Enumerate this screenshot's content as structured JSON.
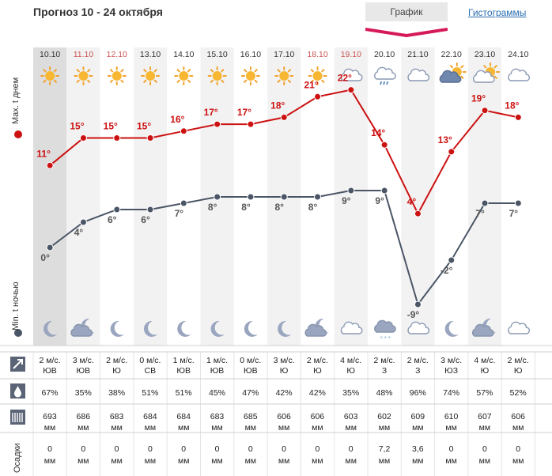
{
  "header": {
    "title": "Прогноз 10 - 24 октября",
    "tab_graph": "График",
    "tab_hist": "Гистограммы"
  },
  "labels": {
    "max_day": "Max. t днем",
    "min_night": "Min. t ночью",
    "precip": "Осадки"
  },
  "colors": {
    "max_line": "#cc1111",
    "min_line": "#4a5566",
    "accent": "#d6195a",
    "weekend_date": "#cc5555"
  },
  "chart_data": {
    "type": "line",
    "categories": [
      "10.10",
      "11.10",
      "12.10",
      "13.10",
      "14.10",
      "15.10",
      "16.10",
      "17.10",
      "18.10",
      "19.10",
      "20.10",
      "21.10",
      "22.10",
      "23.10",
      "24.10"
    ],
    "weekend": [
      false,
      true,
      true,
      false,
      false,
      false,
      false,
      false,
      true,
      true,
      false,
      false,
      false,
      false,
      false
    ],
    "series": [
      {
        "key": "max",
        "values": [
          11,
          15,
          15,
          15,
          16,
          17,
          17,
          18,
          21,
          22,
          14,
          4,
          13,
          19,
          18
        ]
      },
      {
        "key": "min",
        "values": [
          0,
          4,
          6,
          6,
          7,
          8,
          8,
          8,
          8,
          9,
          9,
          -9,
          -2,
          7,
          7
        ]
      }
    ],
    "day_icons": [
      "sun-icon",
      "sun-icon",
      "sun-icon",
      "sun-icon",
      "sun-icon",
      "sun-icon",
      "sun-icon",
      "sun-icon",
      "sun-icon",
      "cloud-icon",
      "rain-cloud-icon",
      "cloud-icon",
      "cloud-sun-icon",
      "cloud-sun-icon",
      "cloud-icon"
    ],
    "night_icons": [
      "moon-icon",
      "cloud-moon-icon",
      "moon-icon",
      "moon-icon",
      "moon-icon",
      "moon-icon",
      "moon-icon",
      "moon-icon",
      "cloud-moon-icon",
      "cloud-icon",
      "snow-cloud-icon",
      "cloud-icon",
      "moon-icon",
      "cloud-moon-icon",
      "cloud-icon"
    ]
  },
  "table": {
    "wind": [
      {
        "speed": "2 м/с.",
        "dir": "ЮВ"
      },
      {
        "speed": "3 м/с.",
        "dir": "ЮВ"
      },
      {
        "speed": "2 м/с.",
        "dir": "Ю"
      },
      {
        "speed": "0 м/с.",
        "dir": "СВ"
      },
      {
        "speed": "1 м/с.",
        "dir": "ЮВ"
      },
      {
        "speed": "1 м/с.",
        "dir": "ЮВ"
      },
      {
        "speed": "0 м/с.",
        "dir": "ЮВ"
      },
      {
        "speed": "3 м/с.",
        "dir": "Ю"
      },
      {
        "speed": "2 м/с.",
        "dir": "Ю"
      },
      {
        "speed": "4 м/с.",
        "dir": "Ю"
      },
      {
        "speed": "2 м/с.",
        "dir": "З"
      },
      {
        "speed": "2 м/с.",
        "dir": "З"
      },
      {
        "speed": "3 м/с.",
        "dir": "ЮЗ"
      },
      {
        "speed": "4 м/с.",
        "dir": "Ю"
      },
      {
        "speed": "2 м/с.",
        "dir": "Ю"
      }
    ],
    "humidity": [
      "67%",
      "35%",
      "38%",
      "51%",
      "51%",
      "45%",
      "47%",
      "42%",
      "42%",
      "35%",
      "48%",
      "96%",
      "74%",
      "57%",
      "52%"
    ],
    "pressure": [
      "693",
      "686",
      "683",
      "684",
      "684",
      "683",
      "685",
      "606",
      "606",
      "603",
      "602",
      "609",
      "610",
      "607",
      "606"
    ],
    "pressure_unit": "мм",
    "precip": [
      "0",
      "0",
      "0",
      "0",
      "0",
      "0",
      "0",
      "0",
      "0",
      "0",
      "7,2",
      "3,6",
      "0",
      "0",
      "0"
    ],
    "precip_unit": "мм"
  }
}
